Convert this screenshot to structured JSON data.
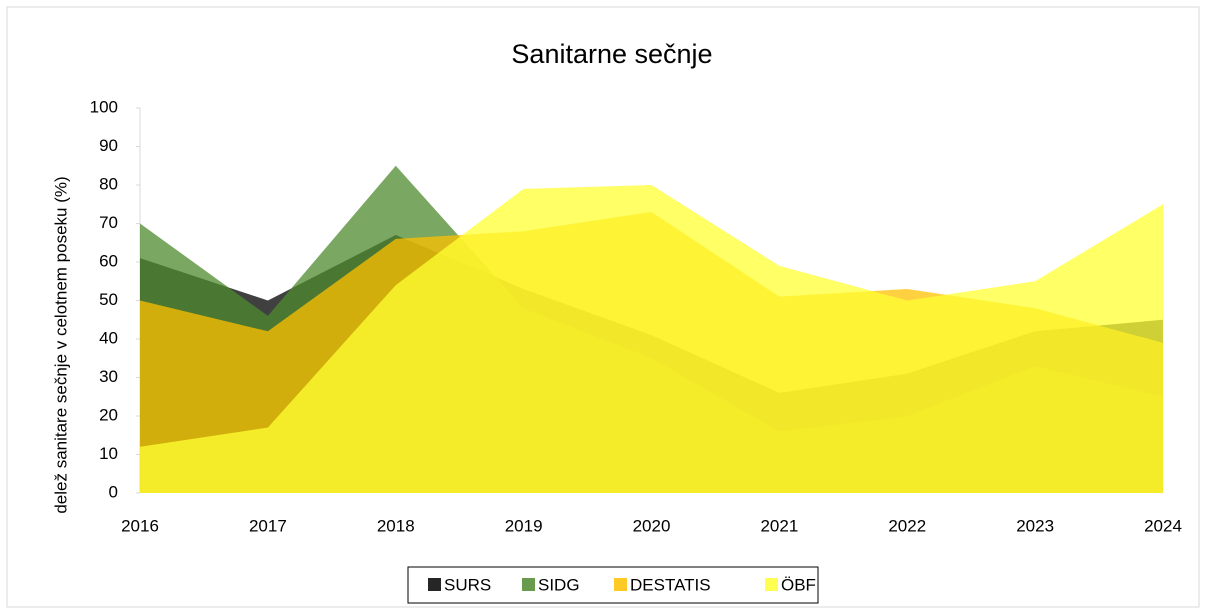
{
  "chart_data": {
    "type": "area",
    "title": "Sanitarne sečnje",
    "y_label": "delež sanitare sečnje v celotnem poseku (%)",
    "categories": [
      "2016",
      "2017",
      "2018",
      "2019",
      "2020",
      "2021",
      "2022",
      "2023",
      "2024"
    ],
    "series": [
      {
        "name": "SURS",
        "color": "#000000",
        "values": [
          61,
          50,
          67,
          53,
          41,
          26,
          31,
          42,
          45
        ]
      },
      {
        "name": "SIDG",
        "color": "#4e8a2e",
        "values": [
          70,
          46,
          85,
          48,
          35,
          16,
          20,
          33,
          25
        ]
      },
      {
        "name": "DESTATIS",
        "color": "#ffc000",
        "values": [
          50,
          42,
          66,
          68,
          73,
          51,
          53,
          48,
          39
        ]
      },
      {
        "name": "ÖBF",
        "color": "#ffff33",
        "values": [
          12,
          17,
          54,
          79,
          80,
          59,
          50,
          55,
          75
        ]
      }
    ],
    "ylim": [
      0,
      100
    ],
    "yticks": [
      0,
      10,
      20,
      30,
      40,
      50,
      60,
      70,
      80,
      90,
      100
    ],
    "legend": "bottom"
  }
}
